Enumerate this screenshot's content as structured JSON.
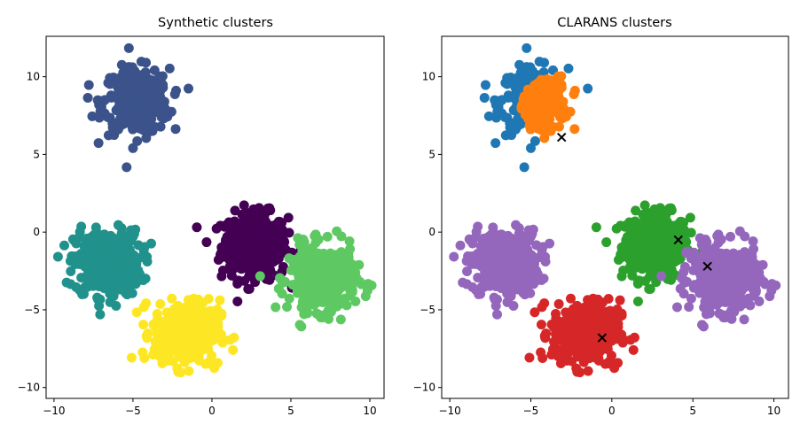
{
  "chart_data": [
    {
      "type": "scatter",
      "title": "Synthetic clusters",
      "xlim": [
        -10.5,
        10.9
      ],
      "ylim": [
        -10.7,
        12.6
      ],
      "xticks": [
        "−10",
        "−5",
        "0",
        "5",
        "10"
      ],
      "yticks": [
        "−10",
        "−5",
        "0",
        "5",
        "10"
      ],
      "xtick_values": [
        -10,
        -5,
        0,
        5,
        10
      ],
      "ytick_values": [
        -10,
        -5,
        0,
        5,
        10
      ],
      "clusters": [
        {
          "name": "cluster-0",
          "color": "#440154",
          "center": [
            2.7,
            -0.9
          ],
          "std": 1.05,
          "count": 350
        },
        {
          "name": "cluster-1",
          "color": "#3b528b",
          "center": [
            -4.8,
            8.4
          ],
          "std": 1.05,
          "count": 350
        },
        {
          "name": "cluster-2",
          "color": "#21918c",
          "center": [
            -6.6,
            -2.0
          ],
          "std": 1.05,
          "count": 350
        },
        {
          "name": "cluster-3",
          "color": "#5ec962",
          "center": [
            7.0,
            -3.0
          ],
          "std": 1.05,
          "count": 350
        },
        {
          "name": "cluster-4",
          "color": "#fde725",
          "center": [
            -1.6,
            -6.5
          ],
          "std": 1.05,
          "count": 350
        }
      ]
    },
    {
      "type": "scatter",
      "title": "CLARANS clusters",
      "xlim": [
        -10.5,
        10.9
      ],
      "ylim": [
        -10.7,
        12.6
      ],
      "xticks": [
        "−10",
        "−5",
        "0",
        "5",
        "10"
      ],
      "yticks": [
        "−10",
        "−5",
        "0",
        "5",
        "10"
      ],
      "xtick_values": [
        -10,
        -5,
        0,
        5,
        10
      ],
      "ytick_values": [
        -10,
        -5,
        0,
        5,
        10
      ],
      "cluster_colors": [
        "#1f77b4",
        "#ff7f0e",
        "#2ca02c",
        "#d62728",
        "#9467bd"
      ],
      "medoids": [
        [
          -3.1,
          6.1
        ],
        [
          4.1,
          -0.5
        ],
        [
          -0.6,
          -6.8
        ],
        [
          5.9,
          -2.2
        ]
      ],
      "medoid_marker": "x",
      "medoid_color": "#000000"
    }
  ]
}
